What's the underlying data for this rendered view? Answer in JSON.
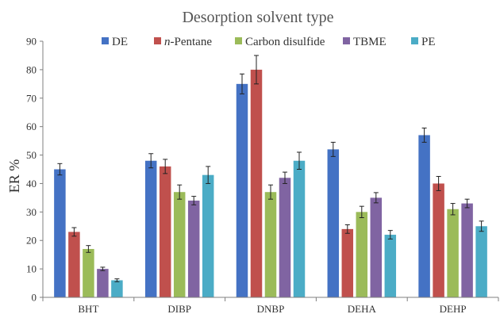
{
  "chart_data": {
    "type": "bar",
    "title": "Desorption solvent type",
    "ylabel": "ER %",
    "xlabel": "",
    "ylim": [
      0,
      90
    ],
    "yticks": [
      0,
      10,
      20,
      30,
      40,
      50,
      60,
      70,
      80,
      90
    ],
    "grid": false,
    "legend_position": "top",
    "categories": [
      "BHT",
      "DIBP",
      "DNBP",
      "DEHA",
      "DEHP"
    ],
    "series": [
      {
        "name": "DE",
        "name_italic_part": "",
        "color": "#4472c4",
        "values": [
          45,
          48,
          75,
          52,
          57
        ],
        "errors": [
          2,
          2.5,
          3.5,
          2.5,
          2.5
        ]
      },
      {
        "name": "-Pentane",
        "name_italic_part": "n",
        "color": "#c0504d",
        "values": [
          23,
          46,
          80,
          24,
          40
        ],
        "errors": [
          1.5,
          2.5,
          5,
          1.5,
          2.5
        ]
      },
      {
        "name": "Carbon disulfide",
        "name_italic_part": "",
        "color": "#9bbb59",
        "values": [
          17,
          37,
          37,
          30,
          31
        ],
        "errors": [
          1.2,
          2.5,
          2.5,
          2,
          2
        ]
      },
      {
        "name": "TBME",
        "name_italic_part": "",
        "color": "#8064a2",
        "values": [
          10,
          34,
          42,
          35,
          33
        ],
        "errors": [
          0.6,
          1.5,
          2,
          1.8,
          1.5
        ]
      },
      {
        "name": "PE",
        "name_italic_part": "",
        "color": "#4bacc6",
        "values": [
          6,
          43,
          48,
          22,
          25
        ],
        "errors": [
          0.5,
          3,
          3,
          1.5,
          1.8
        ]
      }
    ]
  }
}
